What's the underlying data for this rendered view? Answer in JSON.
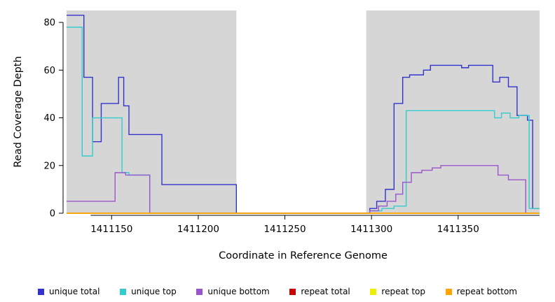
{
  "figure": {
    "background": "#ffffff",
    "plot_shade_color": "#d6d6d6"
  },
  "chart_data": {
    "type": "line",
    "title": "",
    "xlabel": "Coordinate in Reference Genome",
    "ylabel": "Read Coverage Depth",
    "xlim": [
      1411124,
      1411397
    ],
    "ylim": [
      0,
      85
    ],
    "xticks": [
      1411150,
      1411200,
      1411250,
      1411300,
      1411350
    ],
    "yticks": [
      0,
      20,
      40,
      60,
      80
    ],
    "grid": false,
    "legend_position": "bottom",
    "line_style": "step-after",
    "shaded_regions": [
      {
        "x0": 1411124,
        "x1": 1411222
      },
      {
        "x0": 1411297,
        "x1": 1411397
      }
    ],
    "series": [
      {
        "name": "unique total",
        "color": "#3333cc",
        "points": [
          [
            1411124,
            83
          ],
          [
            1411134,
            57
          ],
          [
            1411139,
            30
          ],
          [
            1411144,
            46
          ],
          [
            1411154,
            57
          ],
          [
            1411157,
            45
          ],
          [
            1411160,
            33
          ],
          [
            1411179,
            12
          ],
          [
            1411222,
            0
          ],
          [
            1411299,
            2
          ],
          [
            1411303,
            5
          ],
          [
            1411308,
            10
          ],
          [
            1411313,
            46
          ],
          [
            1411318,
            57
          ],
          [
            1411322,
            58
          ],
          [
            1411330,
            60
          ],
          [
            1411334,
            62
          ],
          [
            1411352,
            61
          ],
          [
            1411356,
            62
          ],
          [
            1411370,
            55
          ],
          [
            1411374,
            57
          ],
          [
            1411379,
            53
          ],
          [
            1411384,
            41
          ],
          [
            1411390,
            39
          ],
          [
            1411393,
            2
          ]
        ]
      },
      {
        "name": "unique top",
        "color": "#33cccc",
        "points": [
          [
            1411124,
            78
          ],
          [
            1411133,
            24
          ],
          [
            1411139,
            40
          ],
          [
            1411156,
            17
          ],
          [
            1411160,
            16
          ],
          [
            1411172,
            0
          ],
          [
            1411299,
            1
          ],
          [
            1411306,
            2
          ],
          [
            1411313,
            3
          ],
          [
            1411320,
            43
          ],
          [
            1411371,
            40
          ],
          [
            1411375,
            42
          ],
          [
            1411380,
            40
          ],
          [
            1411385,
            41
          ],
          [
            1411391,
            2
          ]
        ]
      },
      {
        "name": "unique bottom",
        "color": "#9955cc",
        "points": [
          [
            1411124,
            5
          ],
          [
            1411152,
            17
          ],
          [
            1411158,
            16
          ],
          [
            1411172,
            0
          ],
          [
            1411299,
            1
          ],
          [
            1411304,
            3
          ],
          [
            1411309,
            5
          ],
          [
            1411314,
            8
          ],
          [
            1411318,
            13
          ],
          [
            1411323,
            17
          ],
          [
            1411329,
            18
          ],
          [
            1411335,
            19
          ],
          [
            1411340,
            20
          ],
          [
            1411373,
            16
          ],
          [
            1411379,
            14
          ],
          [
            1411389,
            0
          ]
        ]
      },
      {
        "name": "repeat total",
        "color": "#cc0000",
        "points": [
          [
            1411124,
            0
          ]
        ]
      },
      {
        "name": "repeat top",
        "color": "#eeee00",
        "points": [
          [
            1411124,
            0
          ]
        ]
      },
      {
        "name": "repeat bottom",
        "color": "#ffa500",
        "points": [
          [
            1411124,
            0
          ]
        ]
      }
    ],
    "legend": [
      {
        "label": "unique total",
        "color": "#3333cc"
      },
      {
        "label": "unique top",
        "color": "#33cccc"
      },
      {
        "label": "unique bottom",
        "color": "#9955cc"
      },
      {
        "label": "repeat total",
        "color": "#cc0000"
      },
      {
        "label": "repeat top",
        "color": "#eeee00"
      },
      {
        "label": "repeat bottom",
        "color": "#ffa500"
      }
    ]
  }
}
